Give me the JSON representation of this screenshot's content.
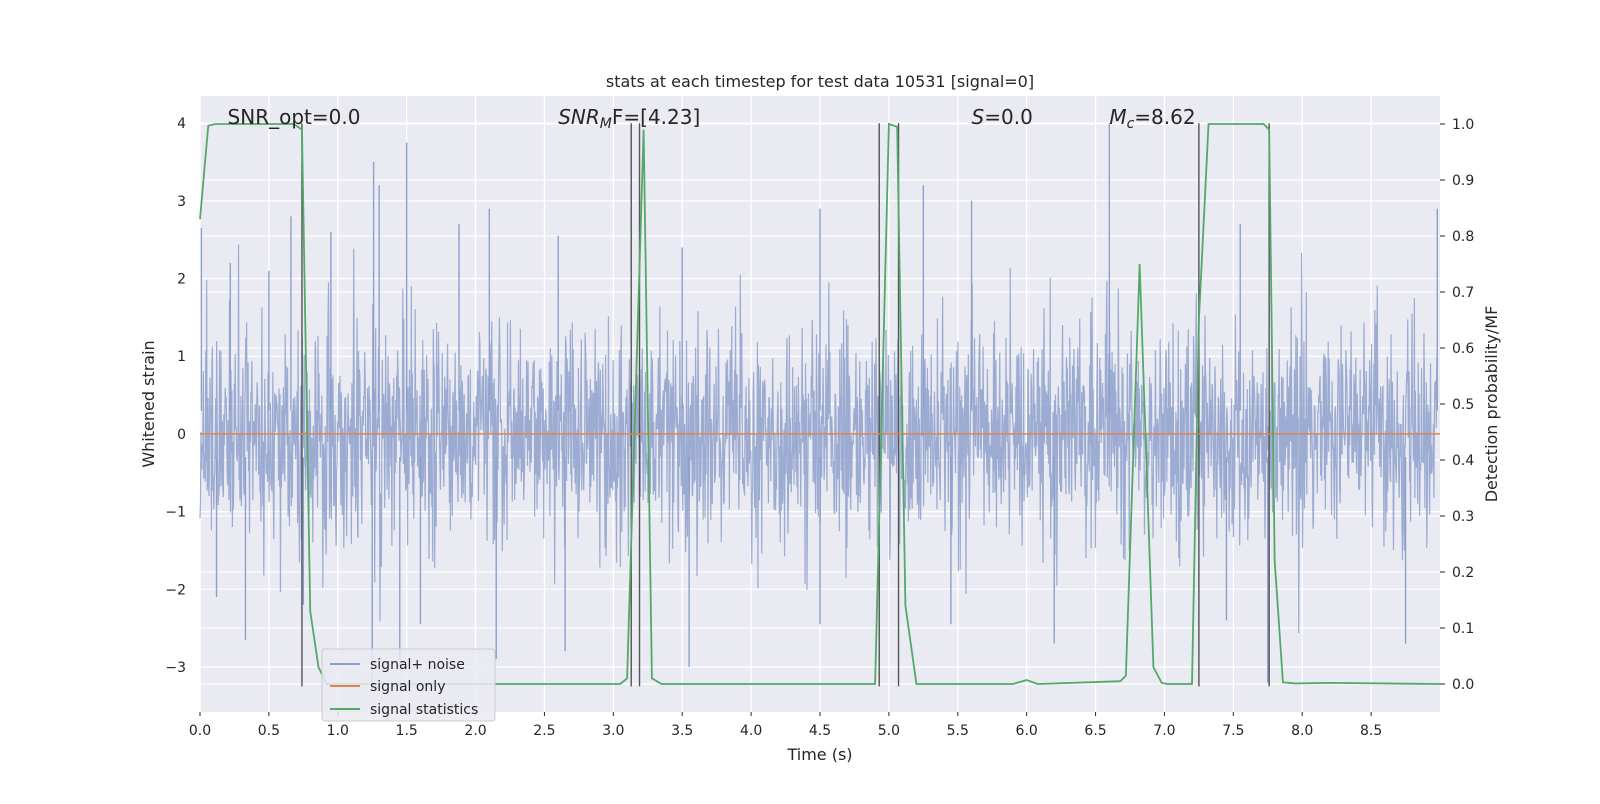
{
  "chart_data": {
    "type": "line",
    "title": "stats at each timestep for test data 10531 [signal=0]",
    "xlabel": "Time (s)",
    "ylabel_left": "Whitened strain",
    "ylabel_right": "Detection probability/MF",
    "xlim": [
      0,
      9
    ],
    "ylim_left": [
      -3.58,
      4.35
    ],
    "ylim_right": [
      -0.05,
      1.05
    ],
    "x_ticks": [
      0.0,
      0.5,
      1.0,
      1.5,
      2.0,
      2.5,
      3.0,
      3.5,
      4.0,
      4.5,
      5.0,
      5.5,
      6.0,
      6.5,
      7.0,
      7.5,
      8.0,
      8.5
    ],
    "x_tick_labels": [
      "0.0",
      "0.5",
      "1.0",
      "1.5",
      "2.0",
      "2.5",
      "3.0",
      "3.5",
      "4.0",
      "4.5",
      "5.0",
      "5.5",
      "6.0",
      "6.5",
      "7.0",
      "7.5",
      "8.0",
      "8.5"
    ],
    "y_left_ticks": [
      -3,
      -2,
      -1,
      0,
      1,
      2,
      3,
      4
    ],
    "y_left_tick_labels": [
      "−3",
      "−2",
      "−1",
      "0",
      "1",
      "2",
      "3",
      "4"
    ],
    "y_right_ticks": [
      0.0,
      0.1,
      0.2,
      0.3,
      0.4,
      0.5,
      0.6,
      0.7,
      0.8,
      0.9,
      1.0
    ],
    "y_right_tick_labels": [
      "0.0",
      "0.1",
      "0.2",
      "0.3",
      "0.4",
      "0.5",
      "0.6",
      "0.7",
      "0.8",
      "0.9",
      "1.0"
    ],
    "grid": true,
    "legend_position": "lower-left",
    "annotations": [
      {
        "text": "SNR_opt=0.0",
        "x": 0.2
      },
      {
        "text": "SNR_MF=[4.23]",
        "x": 2.6,
        "main": "SNR",
        "sub": "M",
        "tail": "F=[4.23]"
      },
      {
        "text": "S=0.0",
        "x": 5.6,
        "main": "S",
        "sub": "",
        "tail": "=0.0"
      },
      {
        "text": "M_c=8.62",
        "x": 6.6,
        "main": "M",
        "sub": "c",
        "tail": "=8.62"
      }
    ],
    "vlines": [
      0.74,
      3.13,
      3.19,
      4.93,
      5.07,
      7.25,
      7.76
    ],
    "series": [
      {
        "name": "signal+ noise",
        "axis": "left",
        "style": "noise-envelope",
        "color": "#8da0cb",
        "amplitude_sd": 0.72,
        "peaks": [
          {
            "x": 0.01,
            "y": 2.65
          },
          {
            "x": 0.22,
            "y": 2.2
          },
          {
            "x": 0.5,
            "y": 2.1
          },
          {
            "x": 0.66,
            "y": 2.8
          },
          {
            "x": 0.95,
            "y": 2.6
          },
          {
            "x": 1.26,
            "y": 3.5
          },
          {
            "x": 1.3,
            "y": 3.2
          },
          {
            "x": 1.5,
            "y": 3.75
          },
          {
            "x": 1.88,
            "y": 2.7
          },
          {
            "x": 2.1,
            "y": 2.9
          },
          {
            "x": 2.6,
            "y": 2.55
          },
          {
            "x": 3.5,
            "y": 2.4
          },
          {
            "x": 4.5,
            "y": 2.9
          },
          {
            "x": 5.25,
            "y": 3.2
          },
          {
            "x": 5.6,
            "y": 3.0
          },
          {
            "x": 6.6,
            "y": 4.0
          },
          {
            "x": 7.55,
            "y": 2.7
          },
          {
            "x": 8.98,
            "y": 2.9
          }
        ],
        "troughs": [
          {
            "x": 0.12,
            "y": -2.1
          },
          {
            "x": 0.33,
            "y": -2.65
          },
          {
            "x": 0.75,
            "y": -2.2
          },
          {
            "x": 1.25,
            "y": -3.25
          },
          {
            "x": 1.45,
            "y": -3.0
          },
          {
            "x": 1.6,
            "y": -2.45
          },
          {
            "x": 2.15,
            "y": -2.9
          },
          {
            "x": 2.65,
            "y": -2.8
          },
          {
            "x": 3.55,
            "y": -3.0
          },
          {
            "x": 4.5,
            "y": -2.45
          },
          {
            "x": 5.45,
            "y": -2.45
          },
          {
            "x": 6.2,
            "y": -2.7
          },
          {
            "x": 7.45,
            "y": -2.4
          },
          {
            "x": 7.75,
            "y": -3.2
          },
          {
            "x": 8.75,
            "y": -2.7
          }
        ]
      },
      {
        "name": "signal only",
        "axis": "left",
        "color": "#dd8452",
        "x": [
          0,
          9
        ],
        "y": [
          0,
          0
        ]
      },
      {
        "name": "signal statistics",
        "axis": "right",
        "color": "#55a868",
        "x": [
          0.0,
          0.06,
          0.11,
          0.5,
          0.68,
          0.74,
          0.8,
          0.86,
          0.92,
          3.05,
          3.1,
          3.22,
          3.28,
          3.35,
          4.9,
          5.0,
          5.06,
          5.12,
          5.2,
          5.9,
          6.0,
          6.08,
          6.68,
          6.72,
          6.82,
          6.92,
          6.98,
          7.02,
          7.2,
          7.25,
          7.32,
          7.72,
          7.76,
          7.8,
          7.86,
          7.95,
          8.2,
          9.0
        ],
        "y": [
          0.83,
          0.997,
          1.0,
          1.0,
          1.0,
          0.99,
          0.13,
          0.03,
          0.0,
          0.0,
          0.01,
          0.99,
          0.01,
          0.0,
          0.0,
          1.0,
          0.995,
          0.14,
          0.0,
          0.0,
          0.007,
          0.0,
          0.005,
          0.015,
          0.75,
          0.03,
          0.002,
          0.0,
          0.0,
          0.65,
          1.0,
          1.0,
          0.99,
          0.22,
          0.003,
          0.001,
          0.002,
          0.0
        ]
      }
    ]
  }
}
